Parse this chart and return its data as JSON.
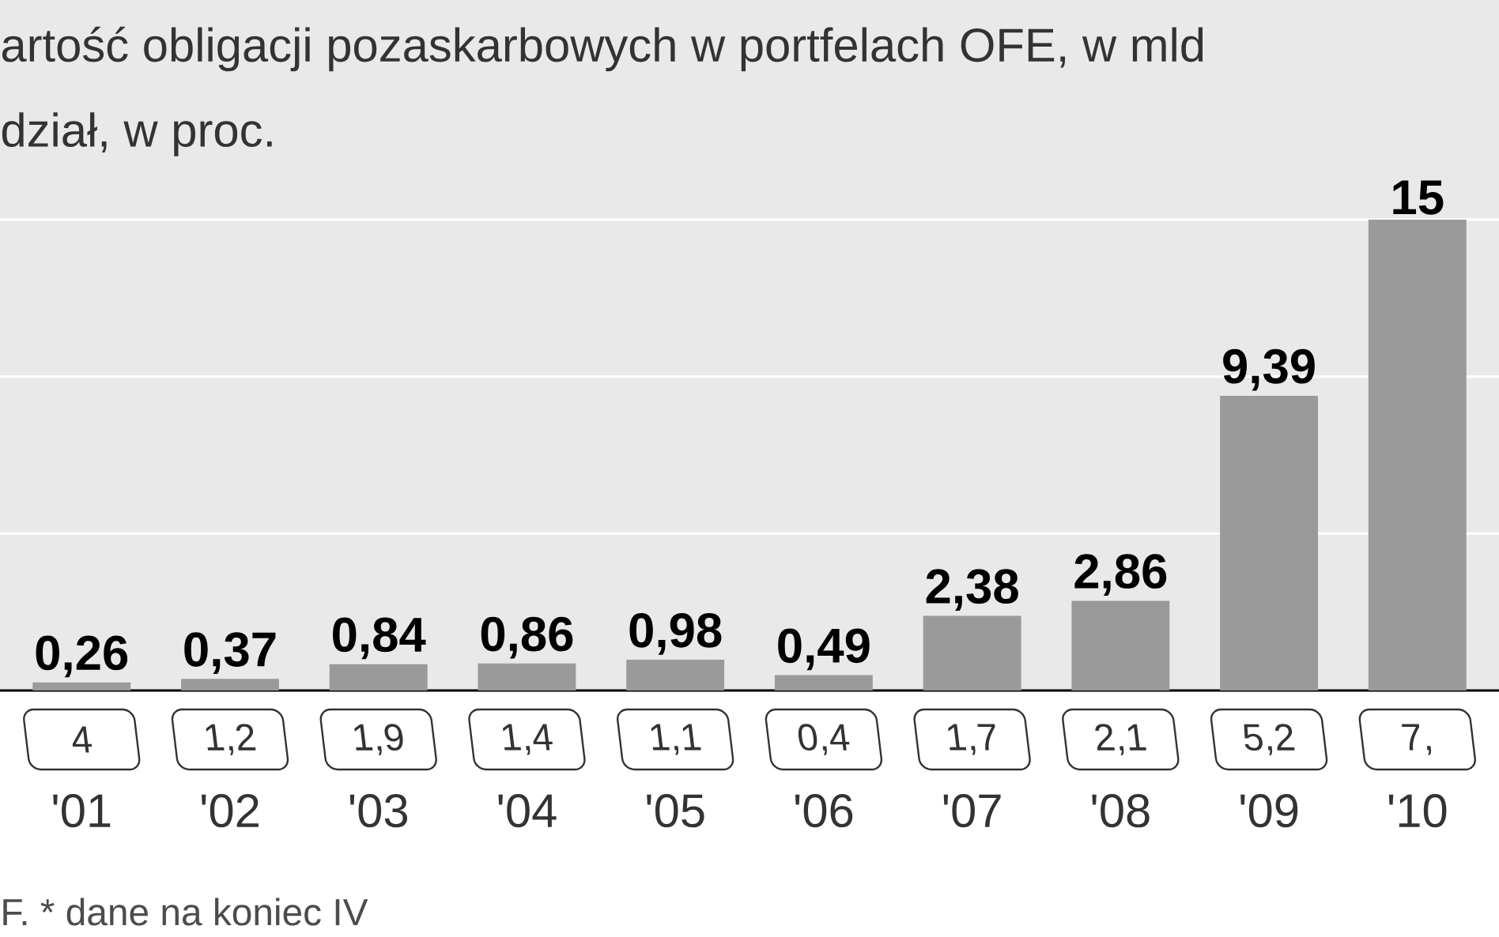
{
  "chart_data": {
    "type": "bar",
    "title": "artość obligacji pozaskarbowych w portfelach OFE, w mld",
    "subtitle": "dział, w proc.",
    "categories": [
      "'01",
      "'02",
      "'03",
      "'04",
      "'05",
      "'06",
      "'07",
      "'08",
      "'09",
      "'10"
    ],
    "values": [
      0.26,
      0.37,
      0.84,
      0.86,
      0.98,
      0.49,
      2.38,
      2.86,
      9.39,
      15
    ],
    "value_labels": [
      "0,26",
      "0,37",
      "0,84",
      "0,86",
      "0,98",
      "0,49",
      "2,38",
      "2,86",
      "9,39",
      "15"
    ],
    "color": "#9a9a9a",
    "ylim": [
      0,
      22
    ],
    "yticks": [
      {
        "value": 5,
        "label": null
      },
      {
        "value": 10,
        "label": null
      },
      {
        "value": 15,
        "label": null
      }
    ],
    "tick_labels": "x",
    "grid": "y",
    "annotations": [
      "4",
      "1,2",
      "1,9",
      "1,4",
      "1,1",
      "0,4",
      "1,7",
      "2,1",
      "5,2",
      "7,",
      "F. * dane na koniec IV"
    ]
  }
}
